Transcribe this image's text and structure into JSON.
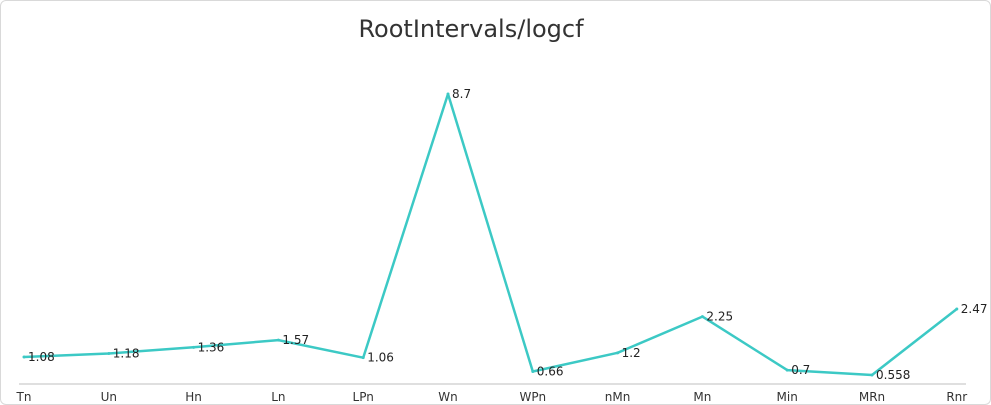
{
  "chart_data": {
    "type": "line",
    "title": "RootIntervals/logcf",
    "categories": [
      "Tn",
      "Un",
      "Hn",
      "Ln",
      "LPn",
      "Wn",
      "WPn",
      "nMn",
      "Mn",
      "Min",
      "MRn",
      "Rnr"
    ],
    "series": [
      {
        "values": [
          1.08,
          1.18,
          1.36,
          1.57,
          1.06,
          8.7,
          0.66,
          1.2,
          2.25,
          0.7,
          0.558,
          2.47
        ],
        "labels": [
          "1.08",
          "1.18",
          "1.36",
          "1.57",
          "1.06",
          "8.7",
          "0.66",
          "1.2",
          "2.25",
          "0.7",
          "0.558",
          "2.47"
        ],
        "color": "#3cc9c5"
      }
    ],
    "xlabel": "",
    "ylabel": "",
    "grid": false,
    "legend": "none"
  },
  "colors": {
    "axis": "#bfbfbf",
    "line": "#3cc9c5"
  }
}
